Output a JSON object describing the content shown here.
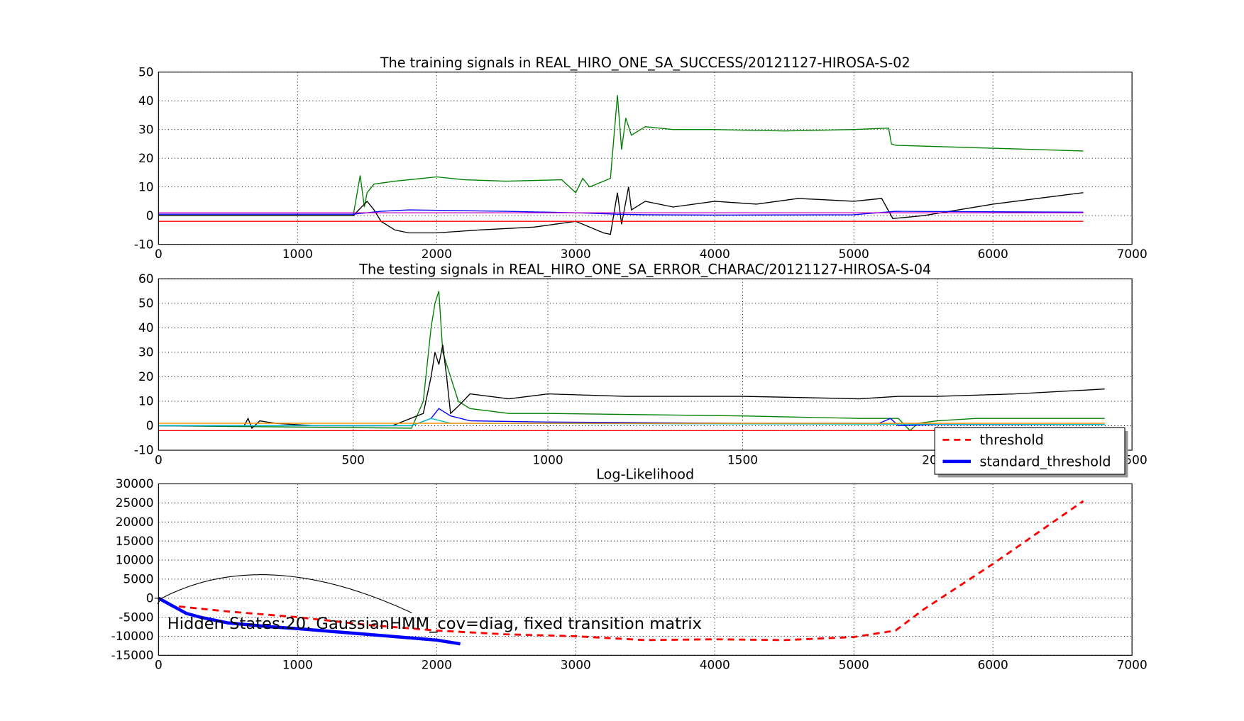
{
  "chart_data": [
    {
      "type": "line",
      "title": "The training signals in REAL_HIRO_ONE_SA_SUCCESS/20121127-HIROSA-S-02",
      "xlim": [
        0,
        7000
      ],
      "ylim": [
        -10,
        50
      ],
      "xticks": [
        0,
        1000,
        2000,
        3000,
        4000,
        5000,
        6000,
        7000
      ],
      "yticks": [
        -10,
        0,
        10,
        20,
        30,
        40,
        50
      ],
      "grid": true,
      "series": [
        {
          "color": "#008000",
          "x": [
            0,
            1400,
            1450,
            1480,
            1500,
            1550,
            1700,
            1900,
            2000,
            2200,
            2500,
            2900,
            3000,
            3050,
            3100,
            3200,
            3250,
            3300,
            3330,
            3360,
            3400,
            3500,
            3700,
            4000,
            4500,
            5000,
            5250,
            5270,
            5300,
            6000,
            6650
          ],
          "values": [
            0,
            0,
            14,
            3,
            8,
            11,
            12,
            13,
            13.5,
            12.5,
            12,
            12.5,
            8,
            13,
            10,
            12,
            13,
            42,
            23,
            34,
            28,
            31,
            30,
            30,
            29.5,
            30,
            30.5,
            25,
            24.5,
            23.5,
            22.5
          ]
        },
        {
          "color": "#000000",
          "x": [
            0,
            1400,
            1500,
            1550,
            1600,
            1700,
            1800,
            2000,
            2300,
            2700,
            3000,
            3050,
            3200,
            3250,
            3300,
            3330,
            3380,
            3400,
            3500,
            3700,
            4000,
            4300,
            4600,
            5000,
            5200,
            5280,
            5500,
            6000,
            6650
          ],
          "values": [
            0,
            0,
            5,
            2,
            -2,
            -5,
            -6,
            -6,
            -5,
            -4,
            -2,
            -3,
            -6,
            -6.5,
            8,
            -3,
            10,
            2,
            5,
            3,
            5,
            4,
            6,
            5,
            6,
            -1,
            0,
            4,
            8
          ]
        },
        {
          "color": "#0000ff",
          "x": [
            0,
            1400,
            1600,
            1800,
            2500,
            3000,
            3300,
            3500,
            4000,
            5000,
            5300,
            6650
          ],
          "values": [
            0.5,
            0.5,
            1.5,
            2,
            1.5,
            1,
            0.5,
            0.3,
            0.2,
            0.3,
            1.5,
            1.2
          ]
        },
        {
          "color": "#bf00bf",
          "x": [
            0,
            6650
          ],
          "values": [
            1,
            1
          ]
        },
        {
          "color": "#ff0000",
          "x": [
            0,
            6650
          ],
          "values": [
            -2,
            -2
          ]
        }
      ]
    },
    {
      "type": "line",
      "title": "The testing  signals in REAL_HIRO_ONE_SA_ERROR_CHARAC/20121127-HIROSA-S-04",
      "xlim": [
        0,
        2500
      ],
      "ylim": [
        -10,
        60
      ],
      "xticks": [
        0,
        500,
        1000,
        1500,
        2000,
        2500
      ],
      "yticks": [
        -10,
        0,
        10,
        20,
        30,
        40,
        50,
        60
      ],
      "grid": true,
      "series": [
        {
          "color": "#008000",
          "x": [
            0,
            650,
            680,
            700,
            710,
            720,
            730,
            750,
            770,
            800,
            900,
            1000,
            1500,
            1800,
            1900,
            1930,
            1950,
            2000,
            2100,
            2200,
            2300,
            2430
          ],
          "values": [
            0,
            -1,
            10,
            40,
            50,
            55,
            30,
            20,
            10,
            7,
            5,
            5,
            4,
            3,
            3,
            -2,
            1,
            2,
            3,
            3,
            3,
            3
          ]
        },
        {
          "color": "#000000",
          "x": [
            0,
            220,
            230,
            240,
            260,
            300,
            350,
            400,
            500,
            600,
            680,
            700,
            710,
            720,
            730,
            740,
            750,
            770,
            800,
            900,
            1000,
            1200,
            1500,
            1800,
            1900,
            2000,
            2200,
            2430
          ],
          "values": [
            0,
            0,
            3,
            -1,
            2,
            1,
            0.5,
            0,
            0,
            0,
            5,
            20,
            30,
            25,
            33,
            20,
            5,
            8,
            13,
            11,
            13,
            12,
            12,
            11,
            12,
            12,
            13,
            15
          ]
        },
        {
          "color": "#0000ff",
          "x": [
            0,
            650,
            700,
            720,
            750,
            800,
            1000,
            1500,
            1850,
            1880,
            1900,
            2000,
            2430
          ],
          "values": [
            0,
            0,
            3,
            7,
            4,
            2,
            1.5,
            1,
            1,
            3,
            0,
            0.5,
            0.5
          ]
        },
        {
          "color": "#00bfbf",
          "x": [
            0,
            650,
            700,
            750,
            2430
          ],
          "values": [
            0,
            0,
            3,
            1,
            0.5
          ]
        },
        {
          "color": "#ff8c00",
          "x": [
            0,
            2430
          ],
          "values": [
            1,
            1
          ]
        },
        {
          "color": "#ff0000",
          "x": [
            0,
            2430
          ],
          "values": [
            -2,
            -2
          ]
        }
      ]
    },
    {
      "type": "line",
      "title": "Log-Likelihood",
      "xlim": [
        0,
        7000
      ],
      "ylim": [
        -15000,
        30000
      ],
      "xticks": [
        0,
        1000,
        2000,
        3000,
        4000,
        5000,
        6000,
        7000
      ],
      "yticks": [
        -15000,
        -10000,
        -5000,
        0,
        5000,
        10000,
        15000,
        20000,
        25000,
        30000
      ],
      "grid": true,
      "legend": "upper right",
      "annotation": "Hidden States:20,  GaussianHMM_cov=diag, fixed transition matrix",
      "series": [
        {
          "name": "threshold",
          "color": "#ff0000",
          "linestyle": "dashed",
          "linewidth": 2.5,
          "x": [
            0,
            100,
            500,
            1000,
            1500,
            2000,
            2500,
            3000,
            3500,
            4000,
            4500,
            5000,
            5300,
            5500,
            6000,
            6650
          ],
          "values": [
            0,
            -2000,
            -3500,
            -5000,
            -7000,
            -8500,
            -9500,
            -10000,
            -11000,
            -10800,
            -11000,
            -10200,
            -8500,
            -3000,
            9000,
            25500
          ]
        },
        {
          "name": "standard_threshold",
          "color": "#0000ff",
          "linestyle": "solid",
          "linewidth": 4,
          "x": [
            0,
            100,
            200,
            300,
            500,
            800,
            1000,
            1500,
            2000,
            2170
          ],
          "values": [
            0,
            -2000,
            -4000,
            -5000,
            -6500,
            -7500,
            -8000,
            -9500,
            -11000,
            -12000
          ]
        }
      ]
    }
  ]
}
